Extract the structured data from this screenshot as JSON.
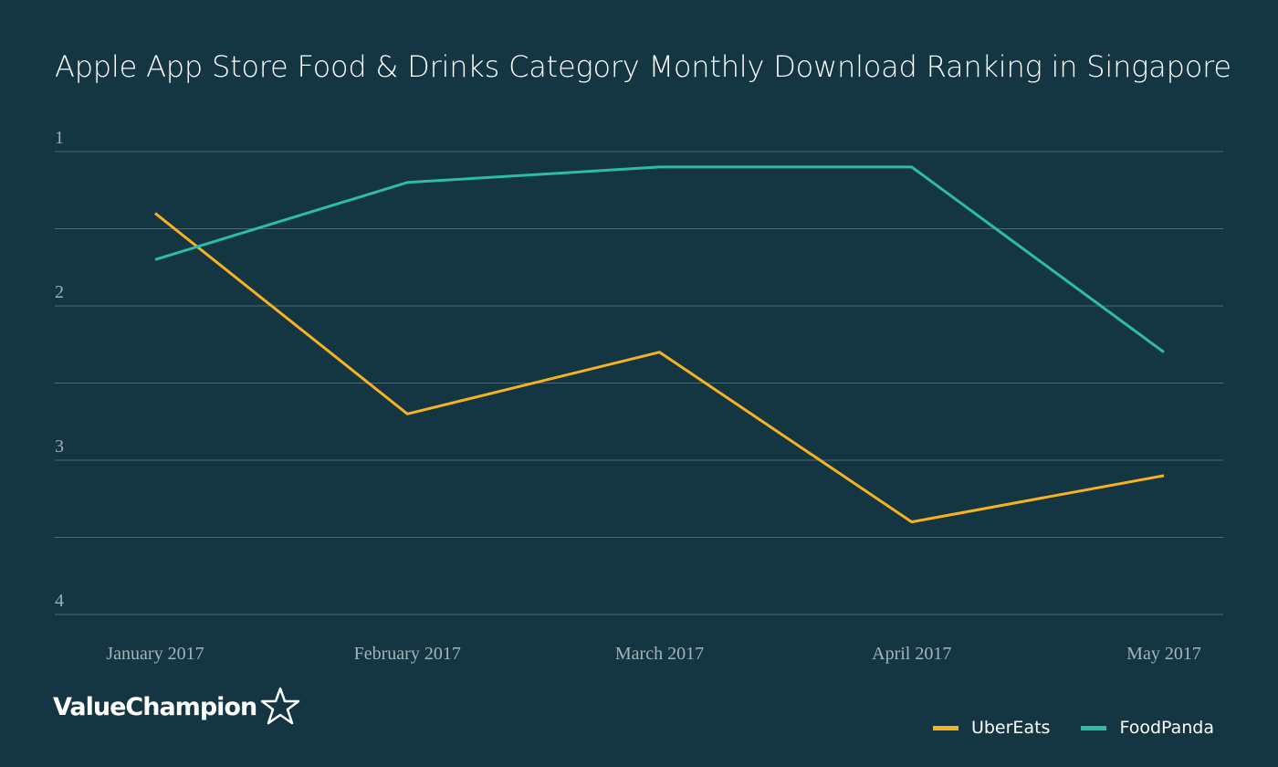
{
  "chart_data": {
    "type": "line",
    "title": "Apple App Store Food & Drinks Category Monthly Download Ranking in Singapore",
    "categories": [
      "January 2017",
      "February 2017",
      "March 2017",
      "April 2017",
      "May 2017"
    ],
    "series": [
      {
        "name": "UberEats",
        "color": "#f6b221",
        "values": [
          1.4,
          2.7,
          2.3,
          3.4,
          3.1
        ]
      },
      {
        "name": "FoodPanda",
        "color": "#2ebcaa",
        "values": [
          1.7,
          1.2,
          1.1,
          1.1,
          2.3
        ]
      }
    ],
    "y_ticks": [
      "1",
      "2",
      "3",
      "4"
    ],
    "ylim": [
      1,
      4
    ],
    "y_inverted": true,
    "grid": true,
    "legend_position": "bottom-right"
  },
  "brand": {
    "logo_text": "ValueChampion",
    "logo_icon": "star-outline-icon"
  }
}
